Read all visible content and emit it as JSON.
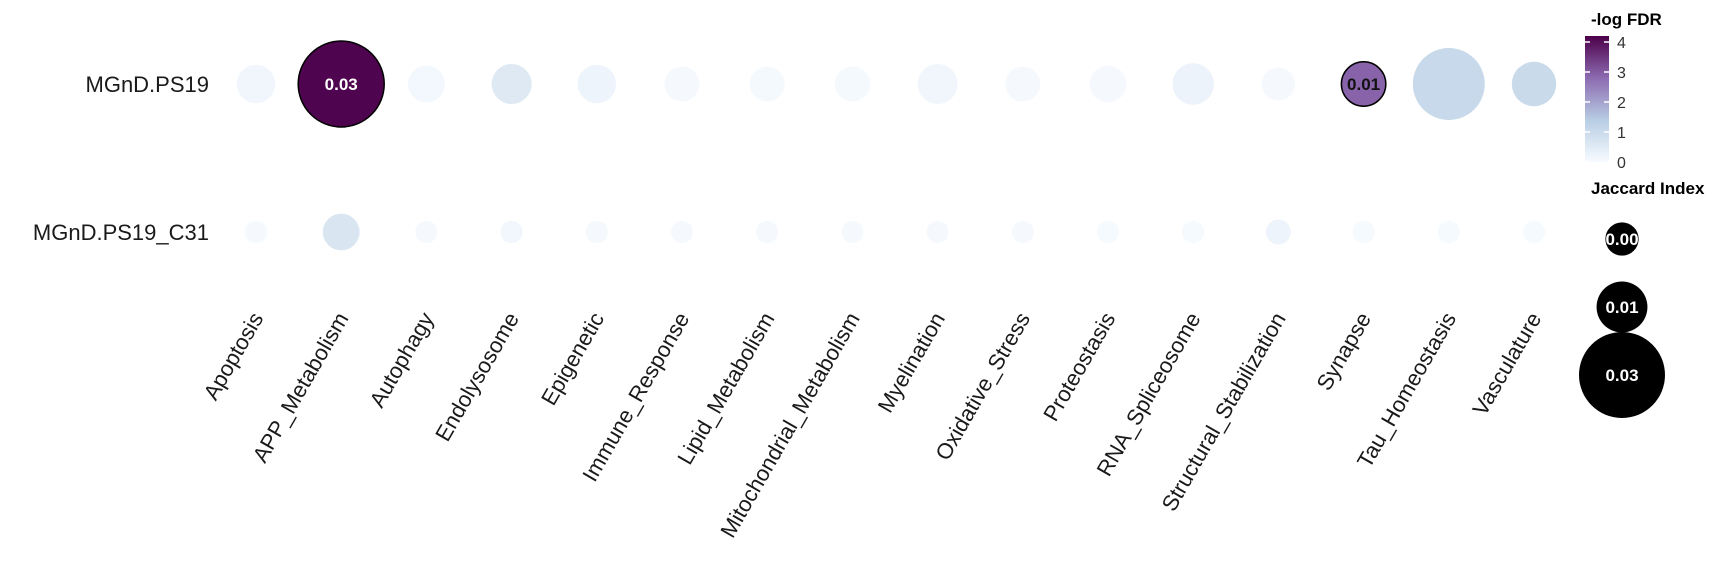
{
  "chart_data": {
    "type": "scatter",
    "subtype": "dot-matrix",
    "rows": [
      "MGnD.PS19",
      "MGnD.PS19_C31"
    ],
    "columns": [
      "Apoptosis",
      "APP_Metabolism",
      "Autophagy",
      "Endolysosome",
      "Epigenetic",
      "Immune_Response",
      "Lipid_Metabolism",
      "Mitochondrial_Metabolism",
      "Myelination",
      "Oxidative_Stress",
      "Proteostasis",
      "RNA_Spliceosome",
      "Structural_Stabilization",
      "Synapse",
      "Tau_Homeostasis",
      "Vasculature"
    ],
    "cells": [
      {
        "row": 0,
        "col": 0,
        "jaccard": 0.006,
        "neglog_fdr": 0.15
      },
      {
        "row": 0,
        "col": 1,
        "jaccard": 0.03,
        "neglog_fdr": 4.15,
        "label": "0.03",
        "outlined": true
      },
      {
        "row": 0,
        "col": 2,
        "jaccard": 0.0055,
        "neglog_fdr": 0.1
      },
      {
        "row": 0,
        "col": 3,
        "jaccard": 0.0065,
        "neglog_fdr": 0.55
      },
      {
        "row": 0,
        "col": 4,
        "jaccard": 0.006,
        "neglog_fdr": 0.2
      },
      {
        "row": 0,
        "col": 5,
        "jaccard": 0.005,
        "neglog_fdr": 0.05
      },
      {
        "row": 0,
        "col": 6,
        "jaccard": 0.005,
        "neglog_fdr": 0.06
      },
      {
        "row": 0,
        "col": 7,
        "jaccard": 0.005,
        "neglog_fdr": 0.06
      },
      {
        "row": 0,
        "col": 8,
        "jaccard": 0.0065,
        "neglog_fdr": 0.15
      },
      {
        "row": 0,
        "col": 9,
        "jaccard": 0.005,
        "neglog_fdr": 0.05
      },
      {
        "row": 0,
        "col": 10,
        "jaccard": 0.0055,
        "neglog_fdr": 0.05
      },
      {
        "row": 0,
        "col": 11,
        "jaccard": 0.007,
        "neglog_fdr": 0.25
      },
      {
        "row": 0,
        "col": 12,
        "jaccard": 0.0045,
        "neglog_fdr": 0.05
      },
      {
        "row": 0,
        "col": 13,
        "jaccard": 0.008,
        "neglog_fdr": 2.9,
        "label": "0.01",
        "outlined": true
      },
      {
        "row": 0,
        "col": 14,
        "jaccard": 0.021,
        "neglog_fdr": 1.05
      },
      {
        "row": 0,
        "col": 15,
        "jaccard": 0.008,
        "neglog_fdr": 1.0
      },
      {
        "row": 1,
        "col": 0,
        "jaccard": 0.002,
        "neglog_fdr": 0.05
      },
      {
        "row": 1,
        "col": 1,
        "jaccard": 0.0055,
        "neglog_fdr": 0.65
      },
      {
        "row": 1,
        "col": 2,
        "jaccard": 0.002,
        "neglog_fdr": 0.05
      },
      {
        "row": 1,
        "col": 3,
        "jaccard": 0.002,
        "neglog_fdr": 0.12
      },
      {
        "row": 1,
        "col": 4,
        "jaccard": 0.002,
        "neglog_fdr": 0.05
      },
      {
        "row": 1,
        "col": 5,
        "jaccard": 0.002,
        "neglog_fdr": 0.05
      },
      {
        "row": 1,
        "col": 6,
        "jaccard": 0.002,
        "neglog_fdr": 0.05
      },
      {
        "row": 1,
        "col": 7,
        "jaccard": 0.002,
        "neglog_fdr": 0.05
      },
      {
        "row": 1,
        "col": 8,
        "jaccard": 0.002,
        "neglog_fdr": 0.05
      },
      {
        "row": 1,
        "col": 9,
        "jaccard": 0.002,
        "neglog_fdr": 0.05
      },
      {
        "row": 1,
        "col": 10,
        "jaccard": 0.002,
        "neglog_fdr": 0.04
      },
      {
        "row": 1,
        "col": 11,
        "jaccard": 0.002,
        "neglog_fdr": 0.04
      },
      {
        "row": 1,
        "col": 12,
        "jaccard": 0.0025,
        "neglog_fdr": 0.2
      },
      {
        "row": 1,
        "col": 13,
        "jaccard": 0.002,
        "neglog_fdr": 0.04
      },
      {
        "row": 1,
        "col": 14,
        "jaccard": 0.002,
        "neglog_fdr": 0.04
      },
      {
        "row": 1,
        "col": 15,
        "jaccard": 0.002,
        "neglog_fdr": 0.04
      }
    ],
    "color_legend": {
      "title": "-log FDR",
      "ticks": [
        0,
        1,
        2,
        3,
        4
      ],
      "range": [
        0,
        4.2
      ],
      "stops": [
        "#f7fbff",
        "#b7cde3",
        "#8c6bb1",
        "#4d004b"
      ]
    },
    "size_legend": {
      "title": "Jaccard Index",
      "entries": [
        {
          "label": "0.00",
          "value": 0.0045
        },
        {
          "label": "0.01",
          "value": 0.0105
        },
        {
          "label": "0.03",
          "value": 0.03
        }
      ],
      "color": "#000000"
    },
    "grid": false
  }
}
